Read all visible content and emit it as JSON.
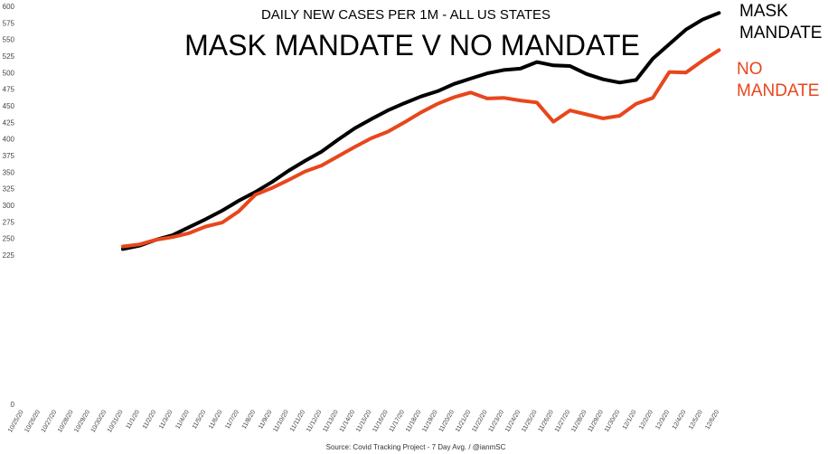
{
  "chart_data": {
    "type": "line",
    "subtitle": "DAILY NEW CASES PER 1M - ALL US STATES",
    "title": "MASK MANDATE V NO MANDATE",
    "source": "Source: Covid Tracking Project - 7 Day Avg. / @ianmSC",
    "xlabel": "",
    "ylabel": "",
    "ylim": [
      0,
      600
    ],
    "y_ticks": [
      0,
      225,
      250,
      275,
      300,
      325,
      350,
      375,
      400,
      425,
      450,
      475,
      500,
      525,
      550,
      575,
      600
    ],
    "grid": false,
    "x": [
      "10/25/20",
      "10/26/20",
      "10/27/20",
      "10/28/20",
      "10/29/20",
      "10/30/20",
      "10/31/20",
      "11/1/20",
      "11/2/20",
      "11/3/20",
      "11/4/20",
      "11/5/20",
      "11/6/20",
      "11/7/20",
      "11/8/20",
      "11/9/20",
      "11/10/20",
      "11/11/20",
      "11/12/20",
      "11/13/20",
      "11/14/20",
      "11/15/20",
      "11/16/20",
      "11/17/20",
      "11/18/20",
      "11/19/20",
      "11/20/20",
      "11/21/20",
      "11/22/20",
      "11/23/20",
      "11/24/20",
      "11/25/20",
      "11/26/20",
      "11/27/20",
      "11/28/20",
      "11/29/20",
      "11/30/20",
      "12/1/20",
      "12/2/20",
      "12/3/20",
      "12/4/20",
      "12/5/20",
      "12/6/20"
    ],
    "series": [
      {
        "name": "MASK MANDATE",
        "label_lines": [
          "MASK",
          "MANDATE"
        ],
        "color": "#000000",
        "values": [
          null,
          null,
          null,
          null,
          null,
          null,
          234,
          239,
          248,
          255,
          267,
          279,
          292,
          307,
          320,
          335,
          352,
          367,
          381,
          399,
          416,
          430,
          443,
          454,
          464,
          472,
          483,
          491,
          499,
          504,
          506,
          516,
          511,
          510,
          498,
          490,
          485,
          489,
          521,
          543,
          565,
          580,
          590
        ]
      },
      {
        "name": "NO MANDATE",
        "label_lines": [
          "NO",
          "MANDATE"
        ],
        "color": "#E8461C",
        "values": [
          null,
          null,
          null,
          null,
          null,
          null,
          238,
          241,
          248,
          252,
          258,
          268,
          274,
          291,
          316,
          326,
          338,
          351,
          360,
          374,
          388,
          401,
          411,
          425,
          440,
          453,
          463,
          470,
          461,
          462,
          458,
          455,
          426,
          443,
          437,
          431,
          435,
          453,
          462,
          501,
          500,
          518,
          534
        ]
      }
    ]
  }
}
